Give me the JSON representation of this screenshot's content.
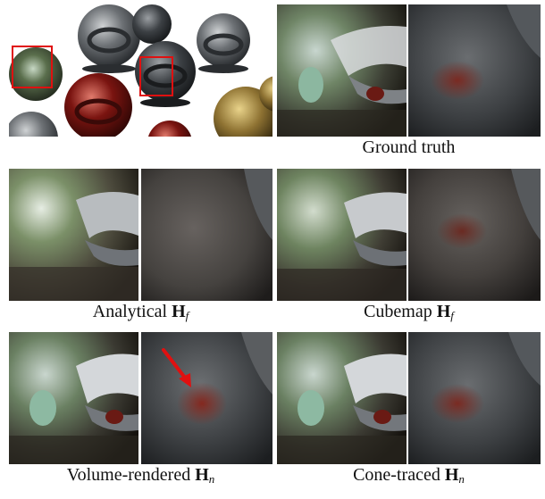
{
  "figure": {
    "captions": [
      {
        "id": "ground-truth",
        "text": "Ground truth"
      },
      {
        "id": "analytical",
        "prefix": "Analytical",
        "symbol": "H",
        "subscript": "f"
      },
      {
        "id": "cubemap",
        "prefix": "Cubemap",
        "symbol": "H",
        "subscript": "f"
      },
      {
        "id": "volume-rendered",
        "prefix": "Volume-rendered",
        "symbol": "H",
        "subscript": "n"
      },
      {
        "id": "cone-traced",
        "prefix": "Cone-traced",
        "symbol": "H",
        "subscript": "n"
      }
    ],
    "colors": {
      "highlight_box": "#e01010",
      "arrow": "#e01010"
    }
  }
}
